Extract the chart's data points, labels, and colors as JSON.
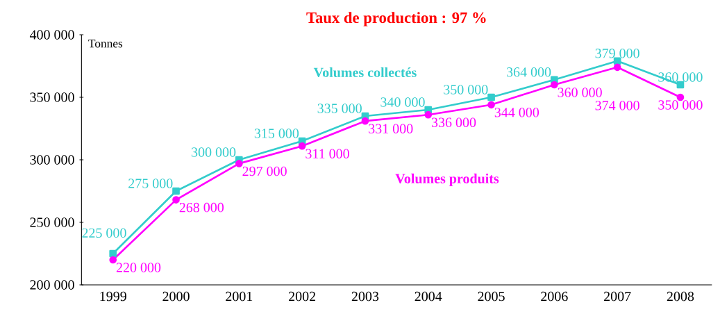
{
  "chart_data": {
    "type": "line",
    "title": "Taux de production : 97 %",
    "ylabel": "Tonnes",
    "categories": [
      "1999",
      "2000",
      "2001",
      "2002",
      "2003",
      "2004",
      "2005",
      "2006",
      "2007",
      "2008"
    ],
    "series": [
      {
        "name": "Volumes collectés",
        "color": "#33cccc",
        "marker": "square",
        "values": [
          225000,
          275000,
          300000,
          315000,
          335000,
          340000,
          350000,
          364000,
          379000,
          360000
        ],
        "value_labels": [
          "225 000",
          "275 000",
          "300 000",
          "315 000",
          "335 000",
          "340 000",
          "350 000",
          "364 000",
          "379 000",
          "360 000"
        ]
      },
      {
        "name": "Volumes produits",
        "color": "#ff00ff",
        "marker": "circle",
        "values": [
          220000,
          268000,
          297000,
          311000,
          331000,
          336000,
          344000,
          360000,
          374000,
          350000
        ],
        "value_labels": [
          "220 000",
          "268 000",
          "297 000",
          "311 000",
          "331 000",
          "336 000",
          "344 000",
          "360 000",
          "374 000",
          "350 000"
        ]
      }
    ],
    "ylim": [
      200000,
      400000
    ],
    "yticks": [
      {
        "value": 200000,
        "label": "200 000"
      },
      {
        "value": 250000,
        "label": "250 000"
      },
      {
        "value": 300000,
        "label": "300 000"
      },
      {
        "value": 350000,
        "label": "350 000"
      },
      {
        "value": 400000,
        "label": "400 000"
      }
    ],
    "grid": false,
    "legend": false,
    "line_style": "solid"
  }
}
